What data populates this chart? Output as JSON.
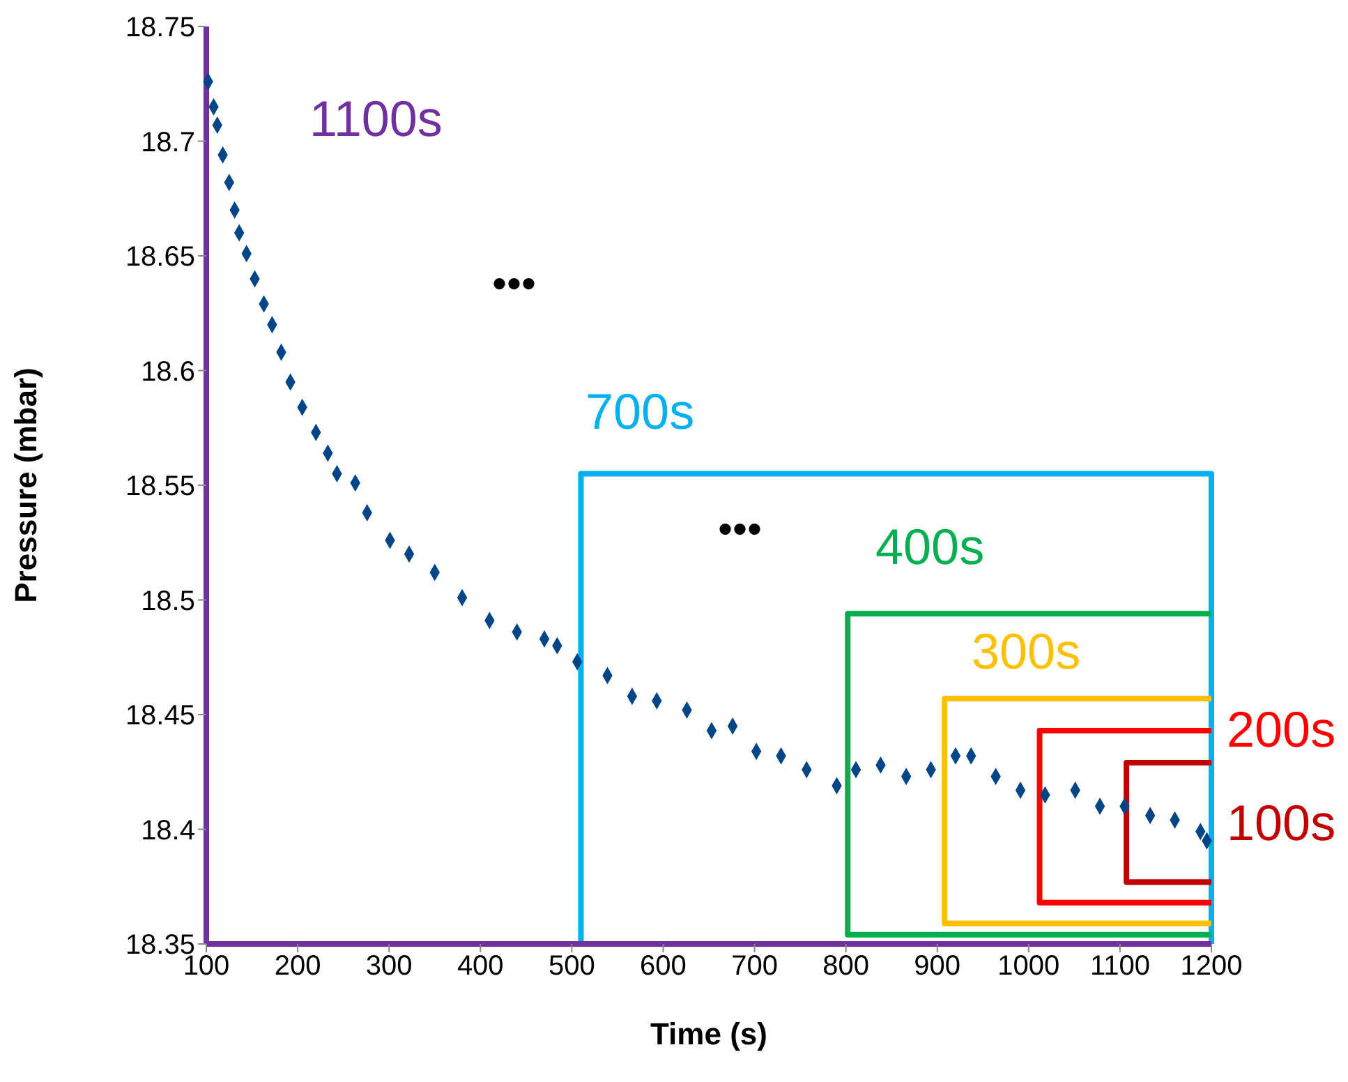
{
  "chart_data": {
    "type": "scatter",
    "xlabel": "Time (s)",
    "ylabel": "Pressure (mbar)",
    "xlim": [
      100,
      1200
    ],
    "xticks": [
      100,
      200,
      300,
      400,
      500,
      600,
      700,
      800,
      900,
      1000,
      1100,
      1200
    ],
    "ylim": [
      18.35,
      18.75
    ],
    "yticks": [
      18.35,
      18.4,
      18.45,
      18.5,
      18.55,
      18.6,
      18.65,
      18.7,
      18.75
    ],
    "grid": false,
    "series": [
      {
        "color": "#004586",
        "marker": "diamond",
        "x": [
          102,
          108,
          112,
          118,
          125,
          131,
          136,
          144,
          153,
          163,
          172,
          182,
          192,
          205,
          220,
          233,
          243,
          263,
          276,
          301,
          322,
          350,
          380,
          410,
          440,
          470,
          484,
          506,
          539,
          566,
          593,
          626,
          653,
          676,
          702,
          729,
          757,
          790,
          811,
          838,
          866,
          893,
          920,
          937,
          964,
          991,
          1018,
          1051,
          1078,
          1105,
          1133,
          1160,
          1188,
          1195
        ],
        "values": [
          18.726,
          18.715,
          18.707,
          18.694,
          18.682,
          18.67,
          18.66,
          18.651,
          18.64,
          18.629,
          18.62,
          18.608,
          18.595,
          18.584,
          18.573,
          18.564,
          18.555,
          18.551,
          18.538,
          18.526,
          18.52,
          18.512,
          18.501,
          18.491,
          18.486,
          18.483,
          18.48,
          18.473,
          18.467,
          18.458,
          18.456,
          18.452,
          18.443,
          18.445,
          18.434,
          18.432,
          18.426,
          18.419,
          18.426,
          18.428,
          18.423,
          18.426,
          18.432,
          18.432,
          18.423,
          18.417,
          18.415,
          18.417,
          18.41,
          18.41,
          18.406,
          18.404,
          18.399,
          18.395
        ]
      },
      {
        "type": "line",
        "marker": "none",
        "color": "#00b0f0",
        "x": [
          510,
          510,
          1200,
          1200
        ],
        "values": [
          18.35,
          18.555,
          18.555,
          18.35
        ]
      },
      {
        "type": "line",
        "marker": "none",
        "color": "#00b050",
        "x": [
          1200,
          802,
          802,
          1200
        ],
        "values": [
          18.354,
          18.354,
          18.494,
          18.494
        ]
      },
      {
        "type": "line",
        "marker": "none",
        "color": "#ffc000",
        "x": [
          1200,
          908,
          908,
          1200
        ],
        "values": [
          18.359,
          18.359,
          18.457,
          18.457
        ]
      },
      {
        "type": "line",
        "marker": "none",
        "color": "#ff0000",
        "x": [
          1200,
          1012,
          1012,
          1200
        ],
        "values": [
          18.368,
          18.368,
          18.443,
          18.443
        ]
      },
      {
        "type": "line",
        "marker": "none",
        "color": "#c00000",
        "x": [
          1200,
          1107,
          1107,
          1200
        ],
        "values": [
          18.377,
          18.377,
          18.429,
          18.429
        ]
      }
    ],
    "annotations": [
      "1100s",
      "700s",
      "400s",
      "300s",
      "200s",
      "100s",
      "•••",
      "•••"
    ]
  }
}
